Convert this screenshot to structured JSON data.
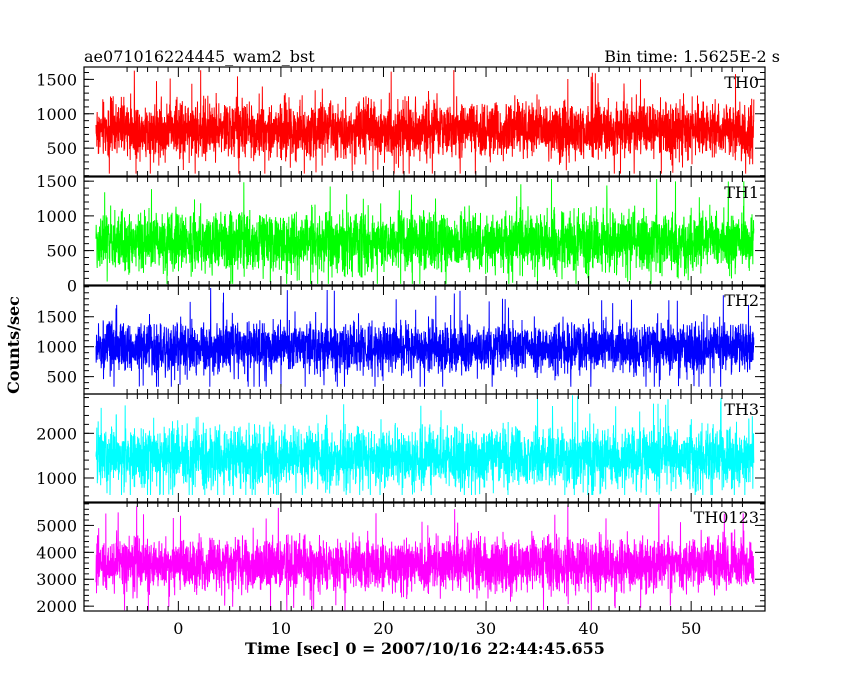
{
  "chart_data": {
    "type": "line",
    "title": "ae071016224445_wam2_bst",
    "subtitle": "Bin time: 1.5625E-2 s",
    "xlabel": "Time [sec] 0 = 2007/10/16 22:44:45.655",
    "ylabel": "Counts/sec",
    "xlim": [
      -9.2,
      57.2
    ],
    "data_x_range": [
      -8.0,
      56.0
    ],
    "bin_time": 0.015625,
    "x_ticks": [
      0,
      10,
      20,
      30,
      40,
      50
    ],
    "grid": false,
    "legend": "none",
    "panels": [
      {
        "name": "TH0",
        "color": "#ff0000",
        "ylim": [
          95,
          1680
        ],
        "y_ticks": [
          500,
          1000,
          1500
        ],
        "series": {
          "mean": 770,
          "spread": 290,
          "min": 130,
          "max": 1650
        }
      },
      {
        "name": "TH1",
        "color": "#00ff00",
        "ylim": [
          -10,
          1560
        ],
        "y_ticks": [
          0,
          500,
          1000,
          1500
        ],
        "series": {
          "mean": 620,
          "spread": 300,
          "min": 20,
          "max": 1560
        }
      },
      {
        "name": "TH2",
        "color": "#0000ff",
        "ylim": [
          210,
          2030
        ],
        "y_ticks": [
          500,
          1000,
          1500
        ],
        "series": {
          "mean": 980,
          "spread": 300,
          "min": 330,
          "max": 2000
        }
      },
      {
        "name": "TH3",
        "color": "#00ffff",
        "ylim": [
          440,
          2880
        ],
        "y_ticks": [
          1000,
          2000
        ],
        "series": {
          "mean": 1450,
          "spread": 480,
          "min": 620,
          "max": 2860
        }
      },
      {
        "name": "TH0123",
        "color": "#ff00ff",
        "ylim": [
          1820,
          5870
        ],
        "y_ticks": [
          2000,
          3000,
          4000,
          5000
        ],
        "series": {
          "mean": 3550,
          "spread": 700,
          "min": 1850,
          "max": 5800
        }
      }
    ]
  }
}
